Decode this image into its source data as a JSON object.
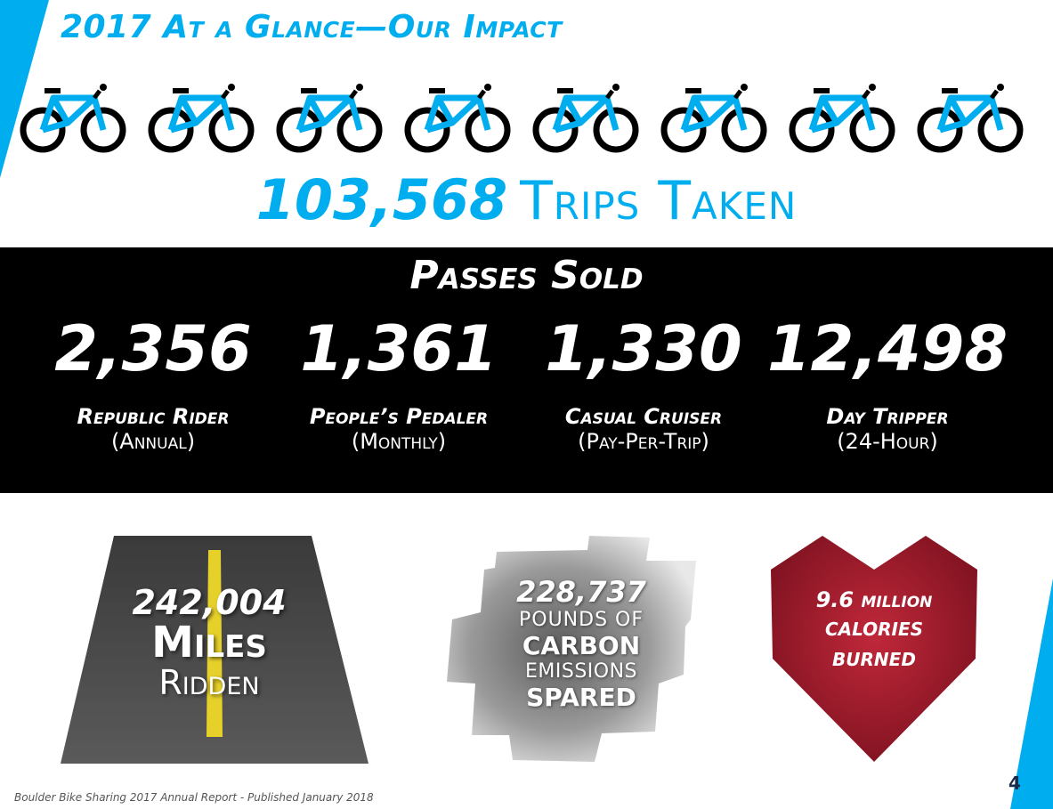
{
  "title": "2017 At a Glance—Our Impact",
  "trips": {
    "number": "103,568",
    "label": "Trips Taken"
  },
  "bike_icon_count": 8,
  "passes": {
    "title": "Passes Sold",
    "items": [
      {
        "count": "2,356",
        "name": "Republic Rider",
        "term": "(Annual)"
      },
      {
        "count": "1,361",
        "name": "People’s Pedaler",
        "term": "(Monthly)"
      },
      {
        "count": "1,330",
        "name": "Casual Cruiser",
        "term": "(Pay-Per-Trip)"
      },
      {
        "count": "12,498",
        "name": "Day Tripper",
        "term": "(24-Hour)"
      }
    ]
  },
  "miles": {
    "number": "242,004",
    "label1": "Miles",
    "label2": "Ridden"
  },
  "carbon": {
    "number": "228,737",
    "line1": "POUNDS OF",
    "line2": "CARBON",
    "line3": "EMISSIONS",
    "line4": "SPARED"
  },
  "calories": {
    "line1": "9.6 million",
    "line2": "calories",
    "line3": "burned"
  },
  "footer": "Boulder Bike Sharing 2017 Annual Report - Published January 2018",
  "page_number": "4",
  "colors": {
    "accent": "#00aeef",
    "band": "#000000",
    "heart": "#9e1b2a",
    "road": "#4a4a4a",
    "road_line": "#e6d02a"
  },
  "icons": {
    "bike": "bicycle-icon",
    "road": "road-graphic",
    "carbon": "carbon-cloud-graphic",
    "heart": "heart-graphic"
  }
}
